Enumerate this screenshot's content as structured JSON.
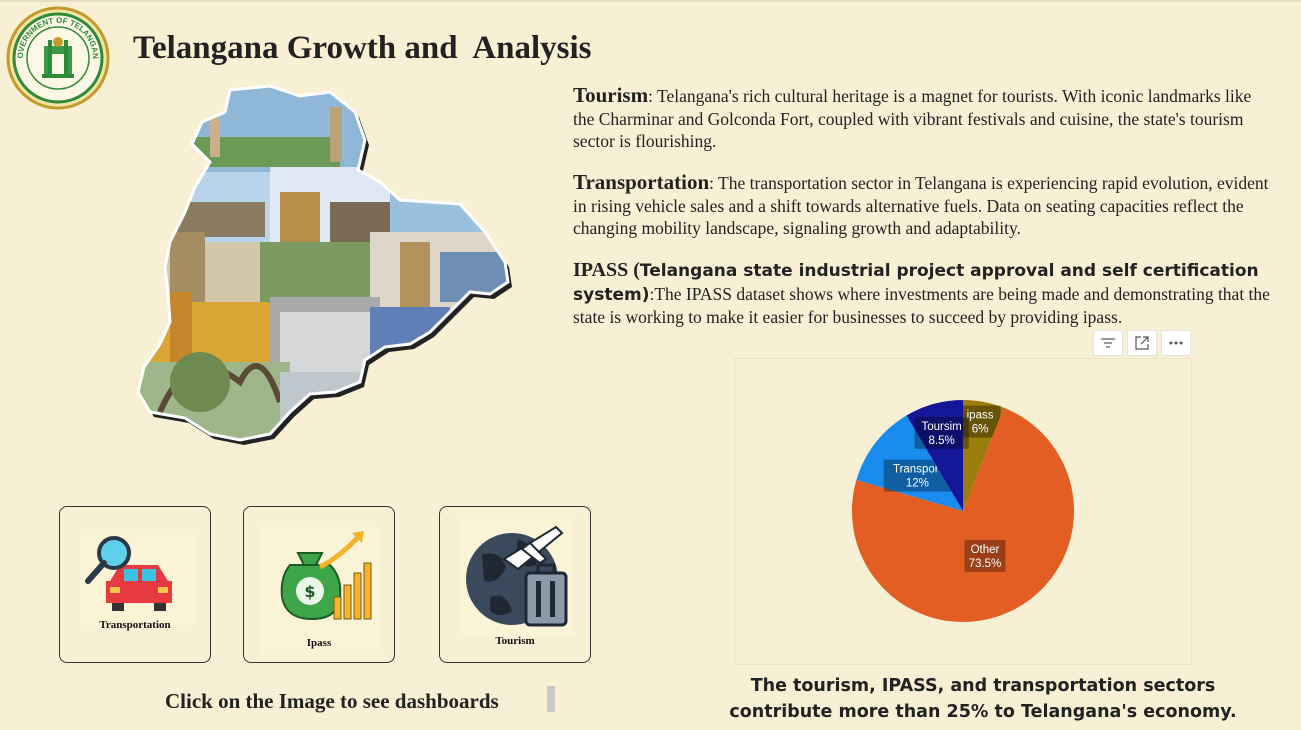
{
  "header": {
    "title": "Telangana Growth and  Analysis",
    "emblem_text": "GOVERNMENT OF TELANGANA"
  },
  "paragraphs": {
    "tourism": {
      "heading": "Tourism",
      "body": ": Telangana's rich cultural heritage is a magnet for tourists. With iconic landmarks like the Charminar and Golconda Fort, coupled with vibrant festivals and cuisine, the state's tourism sector is flourishing."
    },
    "transportation": {
      "heading": "Transportation",
      "body": ": The transportation sector in Telangana is experiencing rapid evolution, evident in rising vehicle sales and a shift towards alternative fuels. Data on seating capacities reflect the changing mobility landscape, signaling growth and adaptability."
    },
    "ipass": {
      "heading_prefix": "IPASS (",
      "heading": "Telangana state industrial project approval and self certification system)",
      "body": ":The IPASS dataset shows where investments are being made and demonstrating that the state is working to make it easier for businesses to succeed by providing ipass."
    }
  },
  "tiles": [
    {
      "label": "Transportation",
      "icon": "car-search-icon"
    },
    {
      "label": "Ipass",
      "icon": "money-bag-growth-icon"
    },
    {
      "label": "Tourism",
      "icon": "globe-plane-luggage-icon"
    }
  ],
  "click_hint": "Click on the Image to see dashboards",
  "chart_caption": {
    "line1": "The tourism, IPASS, and transportation sectors",
    "line2": "contribute more than 25% to Telangana's economy."
  },
  "chart_data": {
    "type": "pie",
    "slices": [
      {
        "label": "ipass",
        "value": 6,
        "display": "6%",
        "color": "#9a7d0a"
      },
      {
        "label": "Other",
        "value": 73.5,
        "display": "73.5%",
        "color": "#e35e22"
      },
      {
        "label": "Transport",
        "value": 12,
        "display": "12%",
        "color": "#1a8cf0"
      },
      {
        "label": "Toursim",
        "value": 8.5,
        "display": "8.5%",
        "color": "#15179a"
      }
    ]
  }
}
